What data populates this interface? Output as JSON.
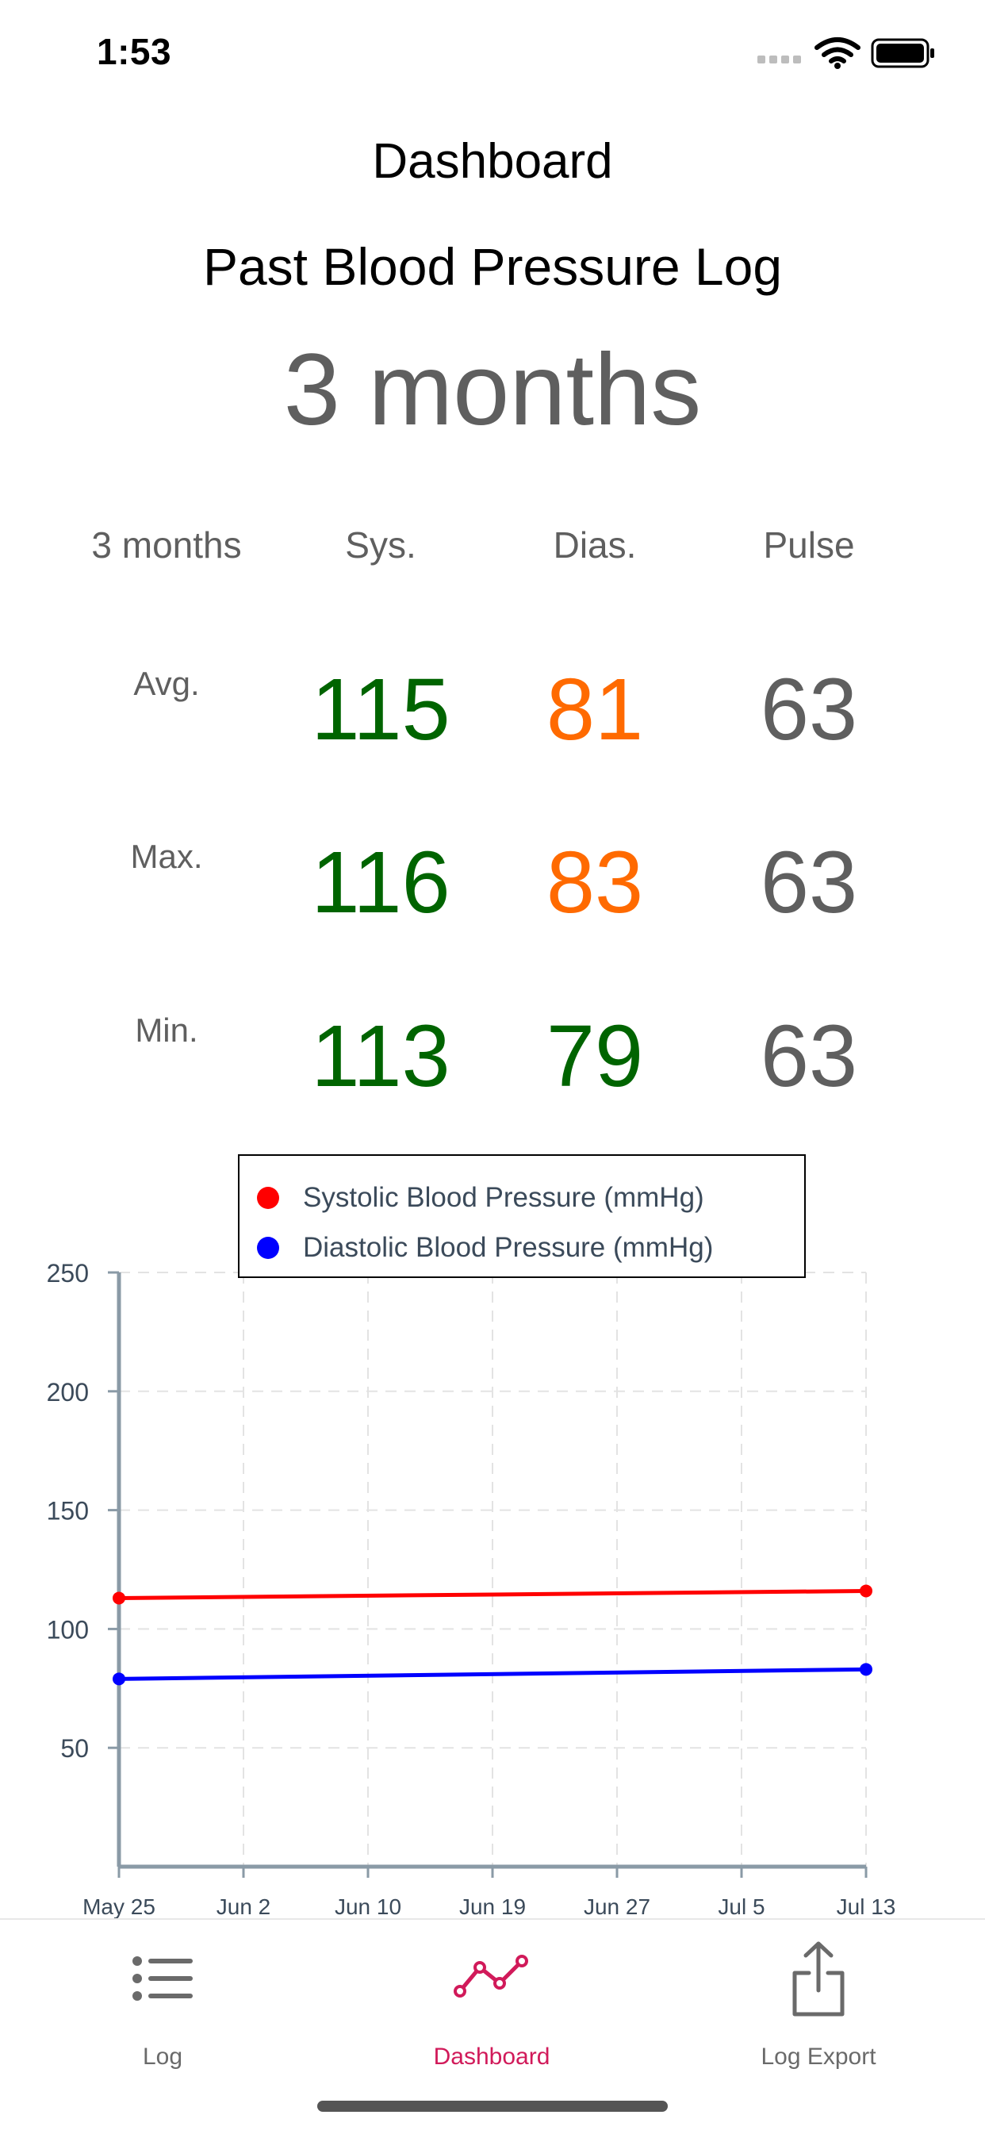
{
  "status_bar": {
    "time": "1:53"
  },
  "header": {
    "title": "Dashboard",
    "subtitle": "Past Blood Pressure Log",
    "period": "3 months"
  },
  "stats": {
    "period_label": "3 months",
    "columns": [
      "Sys.",
      "Dias.",
      "Pulse"
    ],
    "rows": [
      {
        "label": "Avg.",
        "sys": "115",
        "dias": "81",
        "pulse": "63"
      },
      {
        "label": "Max.",
        "sys": "116",
        "dias": "83",
        "pulse": "63"
      },
      {
        "label": "Min.",
        "sys": "113",
        "dias": "79",
        "pulse": "63"
      }
    ],
    "colors": {
      "good": "#006400",
      "warn": "#ff6a00",
      "neutral": "#5f5f5f"
    }
  },
  "chart_data": {
    "type": "line",
    "x": [
      "May 25",
      "Jul 13"
    ],
    "x_ticks": [
      "May 25",
      "Jun 2",
      "Jun 10",
      "Jun 19",
      "Jun 27",
      "Jul 5",
      "Jul 13"
    ],
    "y_ticks": [
      50,
      100,
      150,
      200,
      250
    ],
    "ylim": [
      0,
      250
    ],
    "grid": true,
    "legend_position": "top-center",
    "series": [
      {
        "name": "Systolic Blood Pressure (mmHg)",
        "color": "#ff0000",
        "values": [
          113,
          116
        ]
      },
      {
        "name": "Diastolic Blood Pressure (mmHg)",
        "color": "#0000ff",
        "values": [
          79,
          83
        ]
      }
    ]
  },
  "tabbar": {
    "items": [
      {
        "label": "Log",
        "icon": "list-icon",
        "active": false
      },
      {
        "label": "Dashboard",
        "icon": "chart-line-icon",
        "active": true
      },
      {
        "label": "Log Export",
        "icon": "share-icon",
        "active": false
      }
    ],
    "active_color": "#d11a5a",
    "inactive_color": "#6a6a6a"
  }
}
